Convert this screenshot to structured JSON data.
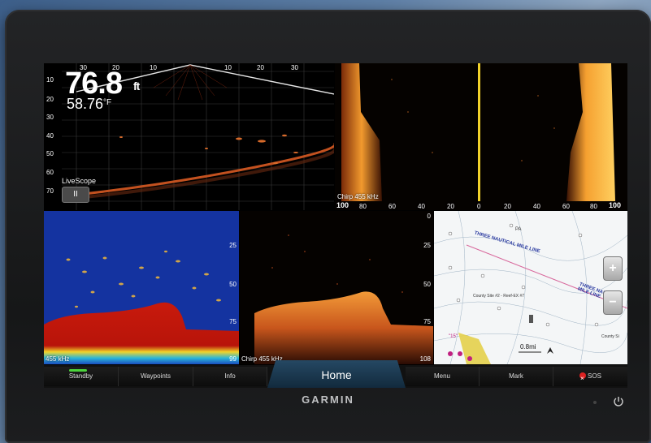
{
  "livescope": {
    "depth_value": "76.8",
    "depth_unit": "ft",
    "temp_value": "58.76",
    "temp_unit": "°F",
    "mode_label": "LiveScope",
    "pause_icon": "II",
    "top_scale": [
      "30",
      "20",
      "10",
      "10",
      "20",
      "30"
    ],
    "depth_scale": [
      "10",
      "20",
      "30",
      "40",
      "50",
      "60",
      "70"
    ]
  },
  "sidescan": {
    "label": "Chirp 455 kHz",
    "scale": [
      "100",
      "80",
      "60",
      "40",
      "20",
      "0",
      "20",
      "40",
      "60",
      "80",
      "100"
    ]
  },
  "sonar": {
    "label": "455 kHz",
    "depth_scale": [
      "25",
      "50",
      "75"
    ],
    "bottom_value": "99"
  },
  "chirp": {
    "label": "Chirp 455 kHz",
    "depth_scale": [
      "0",
      "25",
      "50",
      "75"
    ],
    "bottom_value": "108"
  },
  "chart": {
    "line_label_1": "THREE NAUTICAL MILE LINE",
    "line_label_2": "THREE NAUTICAL MILE LINE",
    "site_label": "County Site #2 - Reef-EX #7",
    "scale_label": "0.8mi",
    "zoom_in": "+",
    "zoom_out": "−",
    "buoy_label": "\"15\"",
    "pa_label": "PA",
    "right_site": "County Si"
  },
  "toolbar": {
    "standby": "Standby",
    "waypoints": "Waypoints",
    "info": "Info",
    "home": "Home",
    "menu": "Menu",
    "mark": "Mark",
    "sos": "SOS"
  },
  "brand": "GARMIN",
  "colors": {
    "sonar_red": "#c81a0c",
    "sonar_blue": "#1433a0",
    "sidescan_orange": "#f08a1c",
    "standby_green": "#4cd43c",
    "home_blue": "#254863"
  }
}
